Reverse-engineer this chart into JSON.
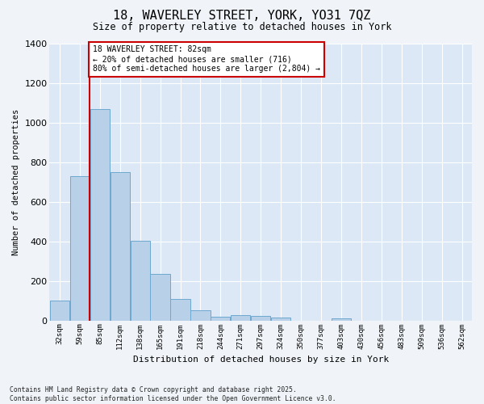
{
  "title": "18, WAVERLEY STREET, YORK, YO31 7QZ",
  "subtitle": "Size of property relative to detached houses in York",
  "xlabel": "Distribution of detached houses by size in York",
  "ylabel": "Number of detached properties",
  "categories": [
    "32sqm",
    "59sqm",
    "85sqm",
    "112sqm",
    "138sqm",
    "165sqm",
    "191sqm",
    "218sqm",
    "244sqm",
    "271sqm",
    "297sqm",
    "324sqm",
    "350sqm",
    "377sqm",
    "403sqm",
    "430sqm",
    "456sqm",
    "483sqm",
    "509sqm",
    "536sqm",
    "562sqm"
  ],
  "values": [
    100,
    730,
    1070,
    750,
    405,
    235,
    110,
    50,
    20,
    28,
    22,
    15,
    0,
    0,
    10,
    0,
    0,
    0,
    0,
    0,
    0
  ],
  "bar_color": "#b8d0e8",
  "bar_edge_color": "#6ea8d0",
  "vline_color": "#cc0000",
  "annotation_text": "18 WAVERLEY STREET: 82sqm\n← 20% of detached houses are smaller (716)\n80% of semi-detached houses are larger (2,804) →",
  "annotation_box_color": "#ffffff",
  "annotation_box_edge": "#cc0000",
  "ylim": [
    0,
    1400
  ],
  "yticks": [
    0,
    200,
    400,
    600,
    800,
    1000,
    1200,
    1400
  ],
  "plot_bg_color": "#dce8f5",
  "fig_bg_color": "#f0f4f8",
  "grid_color": "#ffffff",
  "footer_line1": "Contains HM Land Registry data © Crown copyright and database right 2025.",
  "footer_line2": "Contains public sector information licensed under the Open Government Licence v3.0.",
  "vline_x_index": 1.5
}
